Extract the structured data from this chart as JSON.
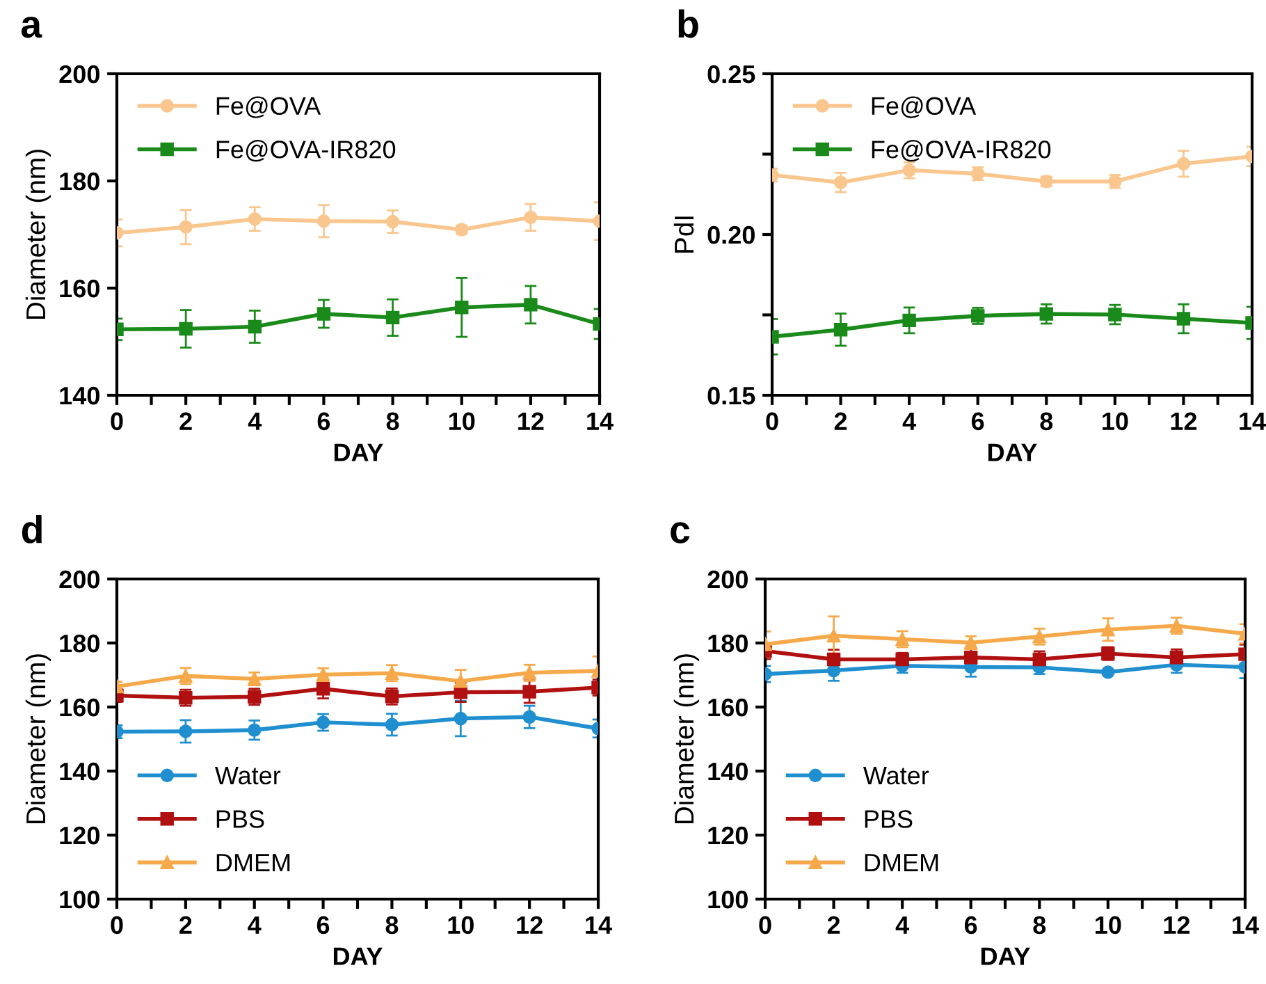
{
  "chart_data": [
    {
      "type": "line",
      "title": "a",
      "xlabel": "DAY",
      "ylabel": "Diameter (nm)",
      "x": [
        0,
        2,
        4,
        6,
        8,
        10,
        12,
        14
      ],
      "xlim": [
        0,
        14
      ],
      "xticks": [
        0,
        {
          "value": 1,
          "label": null
        },
        2,
        {
          "value": 3,
          "label": null
        },
        4,
        {
          "value": 5,
          "label": null
        },
        6,
        {
          "value": 7,
          "label": null
        },
        8,
        {
          "value": 9,
          "label": null
        },
        10,
        {
          "value": 11,
          "label": null
        },
        12,
        {
          "value": 13,
          "label": null
        },
        14
      ],
      "ylim": [
        140,
        200
      ],
      "yticks": [
        140,
        160,
        180,
        200
      ],
      "grid": false,
      "legend": "top left",
      "series": [
        {
          "name": "Fe@OVA",
          "color": "#f9c68e",
          "marker": "circle",
          "values": [
            170.3,
            171.4,
            172.9,
            172.5,
            172.4,
            170.9,
            173.2,
            172.5
          ],
          "errors": [
            2.5,
            3.2,
            2.2,
            3.0,
            2.1,
            0.8,
            2.5,
            3.5
          ]
        },
        {
          "name": "Fe@OVA-IR820",
          "color": "#1a8a1a",
          "marker": "square",
          "values": [
            152.3,
            152.4,
            152.8,
            155.2,
            154.5,
            156.4,
            156.9,
            153.3
          ],
          "errors": [
            2.0,
            3.5,
            3.0,
            2.6,
            3.4,
            5.5,
            3.5,
            2.8
          ]
        }
      ]
    },
    {
      "type": "line",
      "title": "b",
      "xlabel": "DAY",
      "ylabel": "PdI",
      "x": [
        0,
        2,
        4,
        6,
        8,
        10,
        12,
        14
      ],
      "xlim": [
        0,
        14
      ],
      "xticks": [
        0,
        {
          "value": 1,
          "label": null
        },
        2,
        {
          "value": 3,
          "label": null
        },
        4,
        {
          "value": 5,
          "label": null
        },
        6,
        {
          "value": 7,
          "label": null
        },
        8,
        {
          "value": 9,
          "label": null
        },
        10,
        {
          "value": 11,
          "label": null
        },
        12,
        {
          "value": 13,
          "label": null
        },
        14
      ],
      "ylim": [
        0.15,
        0.25
      ],
      "yticks": [
        {
          "value": 0.15,
          "label": "0.15"
        },
        {
          "value": 0.175,
          "label": null
        },
        {
          "value": 0.2,
          "label": "0.20"
        },
        {
          "value": 0.225,
          "label": null
        },
        {
          "value": 0.25,
          "label": "0.25"
        }
      ],
      "grid": false,
      "legend": "top left",
      "series": [
        {
          "name": "Fe@OVA",
          "color": "#f9c68e",
          "marker": "circle",
          "values": [
            0.2185,
            0.2162,
            0.22,
            0.2189,
            0.2165,
            0.2165,
            0.222,
            0.2243
          ],
          "errors": [
            0.002,
            0.003,
            0.0025,
            0.002,
            0.0015,
            0.002,
            0.004,
            0.003
          ]
        },
        {
          "name": "Fe@OVA-IR820",
          "color": "#1a8a1a",
          "marker": "square",
          "values": [
            0.1682,
            0.1704,
            0.1733,
            0.1747,
            0.1753,
            0.1751,
            0.1738,
            0.1725
          ],
          "errors": [
            0.0055,
            0.005,
            0.004,
            0.0025,
            0.003,
            0.003,
            0.0045,
            0.005
          ]
        }
      ]
    },
    {
      "type": "line",
      "title": "d",
      "xlabel": "DAY",
      "ylabel": "Diameter (nm)",
      "x": [
        0,
        2,
        4,
        6,
        8,
        10,
        12,
        14
      ],
      "xlim": [
        0,
        14
      ],
      "xticks": [
        0,
        {
          "value": 1,
          "label": null
        },
        2,
        {
          "value": 3,
          "label": null
        },
        4,
        {
          "value": 5,
          "label": null
        },
        6,
        {
          "value": 7,
          "label": null
        },
        8,
        {
          "value": 9,
          "label": null
        },
        10,
        {
          "value": 11,
          "label": null
        },
        12,
        {
          "value": 13,
          "label": null
        },
        14
      ],
      "ylim": [
        100,
        200
      ],
      "yticks": [
        100,
        120,
        140,
        160,
        180,
        200
      ],
      "grid": false,
      "legend": "bottom left",
      "series": [
        {
          "name": "Water",
          "color": "#1f8fd0",
          "marker": "circle",
          "values": [
            152.3,
            152.4,
            152.8,
            155.2,
            154.5,
            156.4,
            156.9,
            153.3
          ],
          "errors": [
            2.0,
            3.5,
            3.0,
            2.6,
            3.4,
            5.5,
            3.5,
            2.8
          ]
        },
        {
          "name": "PBS",
          "color": "#b01010",
          "marker": "square",
          "values": [
            163.6,
            162.9,
            163.2,
            165.7,
            163.3,
            164.6,
            164.8,
            166.1
          ],
          "errors": [
            2.0,
            2.5,
            2.5,
            3.0,
            2.5,
            3.0,
            3.5,
            2.5
          ]
        },
        {
          "name": "DMEM",
          "color": "#f6a94a",
          "marker": "triangle",
          "values": [
            166.4,
            169.7,
            168.8,
            170.1,
            170.6,
            168.1,
            170.7,
            171.3
          ],
          "errors": [
            1.5,
            2.5,
            2.0,
            2.0,
            2.5,
            3.5,
            2.5,
            4.5
          ]
        }
      ]
    },
    {
      "type": "line",
      "title": "c",
      "xlabel": "DAY",
      "ylabel": "Diameter (nm)",
      "x": [
        0,
        2,
        4,
        6,
        8,
        10,
        12,
        14
      ],
      "xlim": [
        0,
        14
      ],
      "xticks": [
        0,
        {
          "value": 1,
          "label": null
        },
        2,
        {
          "value": 3,
          "label": null
        },
        4,
        {
          "value": 5,
          "label": null
        },
        6,
        {
          "value": 7,
          "label": null
        },
        8,
        {
          "value": 9,
          "label": null
        },
        10,
        {
          "value": 11,
          "label": null
        },
        12,
        {
          "value": 13,
          "label": null
        },
        14
      ],
      "ylim": [
        100,
        200
      ],
      "yticks": [
        100,
        120,
        140,
        160,
        180,
        200
      ],
      "grid": false,
      "legend": "bottom left",
      "series": [
        {
          "name": "Water",
          "color": "#1f8fd0",
          "marker": "circle",
          "values": [
            170.3,
            171.4,
            172.9,
            172.5,
            172.4,
            170.9,
            173.2,
            172.5
          ],
          "errors": [
            2.5,
            3.2,
            2.2,
            3.0,
            2.1,
            0.8,
            2.5,
            3.5
          ]
        },
        {
          "name": "PBS",
          "color": "#b01010",
          "marker": "square",
          "values": [
            177.5,
            174.9,
            174.9,
            175.5,
            174.9,
            176.7,
            175.5,
            176.5
          ],
          "errors": [
            2.5,
            3.0,
            2.0,
            3.0,
            2.5,
            2.0,
            2.5,
            3.0
          ]
        },
        {
          "name": "DMEM",
          "color": "#f6a94a",
          "marker": "triangle",
          "values": [
            179.6,
            182.3,
            181.2,
            180.1,
            182.0,
            184.2,
            185.4,
            182.9
          ],
          "errors": [
            4.0,
            6.0,
            2.5,
            2.0,
            2.5,
            3.5,
            2.5,
            3.0
          ]
        }
      ]
    }
  ]
}
